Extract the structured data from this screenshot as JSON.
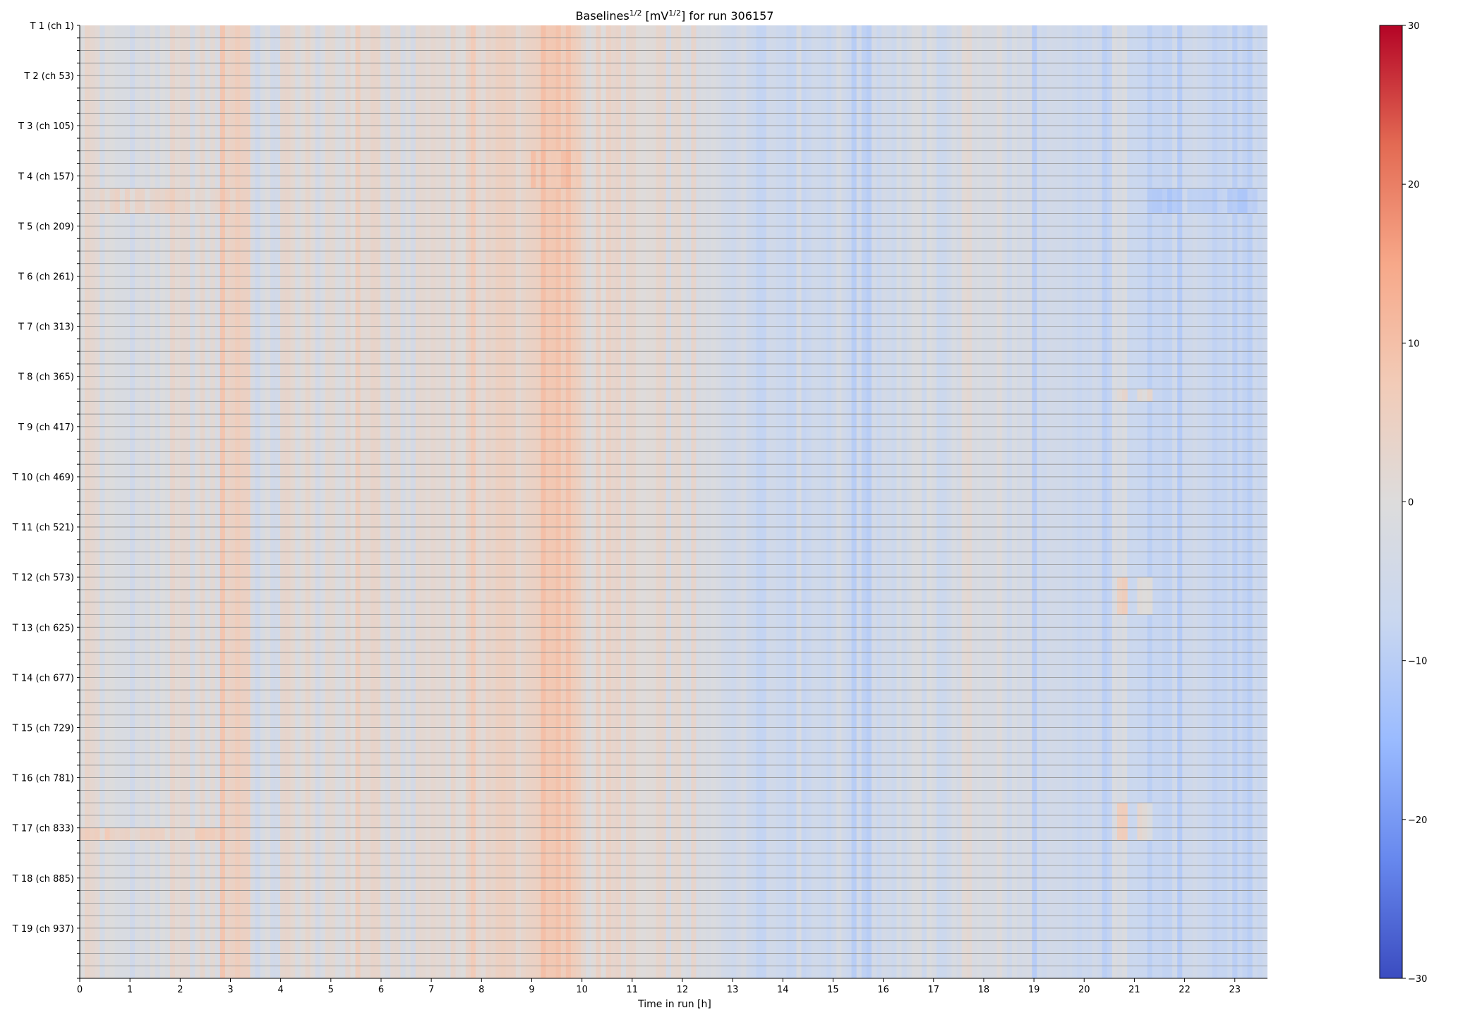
{
  "chart_data": {
    "type": "heatmap",
    "title": {
      "parts": [
        {
          "text": "Baselines",
          "sup": false
        },
        {
          "text": "1/2",
          "sup": true
        },
        {
          "text": " [mV",
          "sup": false
        },
        {
          "text": "1/2",
          "sup": true
        },
        {
          "text": "] for run 306157",
          "sup": false
        }
      ]
    },
    "xlabel": "Time in run [h]",
    "ylabel": "",
    "xlim": [
      0,
      23.65
    ],
    "x_ticks": [
      0,
      1,
      2,
      3,
      4,
      5,
      6,
      7,
      8,
      9,
      10,
      11,
      12,
      13,
      14,
      15,
      16,
      17,
      18,
      19,
      20,
      21,
      22,
      23
    ],
    "y_tick_labels": [
      "T 1 (ch 1)",
      "T 2 (ch 53)",
      "T 3 (ch 105)",
      "T 4 (ch 157)",
      "T 5 (ch 209)",
      "T 6 (ch 261)",
      "T 7 (ch 313)",
      "T 8 (ch 365)",
      "T 9 (ch 417)",
      "T 10 (ch 469)",
      "T 11 (ch 521)",
      "T 12 (ch 573)",
      "T 13 (ch 625)",
      "T 14 (ch 677)",
      "T 15 (ch 729)",
      "T 16 (ch 781)",
      "T 17 (ch 833)",
      "T 18 (ch 885)",
      "T 19 (ch 937)"
    ],
    "rows_total": 76,
    "rows_per_labeled_tick": 4,
    "time_bins": 237,
    "colorbar": {
      "cmap": "coolwarm",
      "vmin": -30,
      "vmax": 30,
      "ticks": [
        30,
        20,
        10,
        0,
        -10,
        -20,
        -30
      ],
      "colors": [
        "#3b4cc0",
        "#6788ee",
        "#9abbff",
        "#c9d7f0",
        "#dddcdc",
        "#f2cbb7",
        "#f7a889",
        "#e36a53",
        "#b40426"
      ]
    },
    "time_profile": [
      {
        "from": 0.0,
        "to": 0.35,
        "value": 2
      },
      {
        "from": 0.35,
        "to": 1.6,
        "value": -2
      },
      {
        "from": 1.6,
        "to": 2.8,
        "value": 0
      },
      {
        "from": 2.8,
        "to": 3.35,
        "value": 6
      },
      {
        "from": 3.35,
        "to": 4.0,
        "value": -3
      },
      {
        "from": 4.0,
        "to": 4.6,
        "value": 1
      },
      {
        "from": 4.6,
        "to": 5.3,
        "value": -1
      },
      {
        "from": 5.3,
        "to": 6.0,
        "value": 3
      },
      {
        "from": 6.0,
        "to": 6.8,
        "value": -1
      },
      {
        "from": 6.8,
        "to": 7.8,
        "value": 2
      },
      {
        "from": 7.8,
        "to": 9.0,
        "value": 4
      },
      {
        "from": 9.0,
        "to": 10.0,
        "value": 7
      },
      {
        "from": 10.0,
        "to": 11.0,
        "value": 2
      },
      {
        "from": 11.0,
        "to": 12.3,
        "value": 0
      },
      {
        "from": 12.3,
        "to": 13.2,
        "value": -3
      },
      {
        "from": 13.2,
        "to": 15.4,
        "value": -5
      },
      {
        "from": 15.4,
        "to": 15.8,
        "value": -8
      },
      {
        "from": 15.8,
        "to": 17.5,
        "value": -4
      },
      {
        "from": 17.5,
        "to": 18.4,
        "value": -1
      },
      {
        "from": 18.4,
        "to": 19.0,
        "value": -4
      },
      {
        "from": 19.0,
        "to": 20.6,
        "value": -7
      },
      {
        "from": 20.6,
        "to": 21.3,
        "value": -4
      },
      {
        "from": 21.3,
        "to": 23.65,
        "value": -8
      }
    ],
    "highlights": [
      {
        "row_from": 13,
        "row_to": 15,
        "t_from": 0.4,
        "t_to": 3.0,
        "value": 6
      },
      {
        "row_from": 13,
        "row_to": 15,
        "t_from": 21.3,
        "t_to": 23.65,
        "value": -11
      },
      {
        "row_from": 64,
        "row_to": 65,
        "t_from": 0.0,
        "t_to": 3.0,
        "value": 9
      },
      {
        "row_from": 29,
        "row_to": 30,
        "t_from": 20.7,
        "t_to": 20.85,
        "value": 10
      },
      {
        "row_from": 29,
        "row_to": 30,
        "t_from": 21.15,
        "t_to": 21.3,
        "value": 10
      },
      {
        "row_from": 44,
        "row_to": 47,
        "t_from": 20.7,
        "t_to": 20.85,
        "value": 11
      },
      {
        "row_from": 44,
        "row_to": 47,
        "t_from": 21.15,
        "t_to": 21.3,
        "value": 10
      },
      {
        "row_from": 62,
        "row_to": 65,
        "t_from": 20.7,
        "t_to": 20.85,
        "value": 11
      },
      {
        "row_from": 62,
        "row_to": 65,
        "t_from": 21.15,
        "t_to": 21.3,
        "value": 10
      },
      {
        "row_from": 10,
        "row_to": 13,
        "t_from": 9.0,
        "t_to": 9.9,
        "value": 10
      }
    ]
  }
}
